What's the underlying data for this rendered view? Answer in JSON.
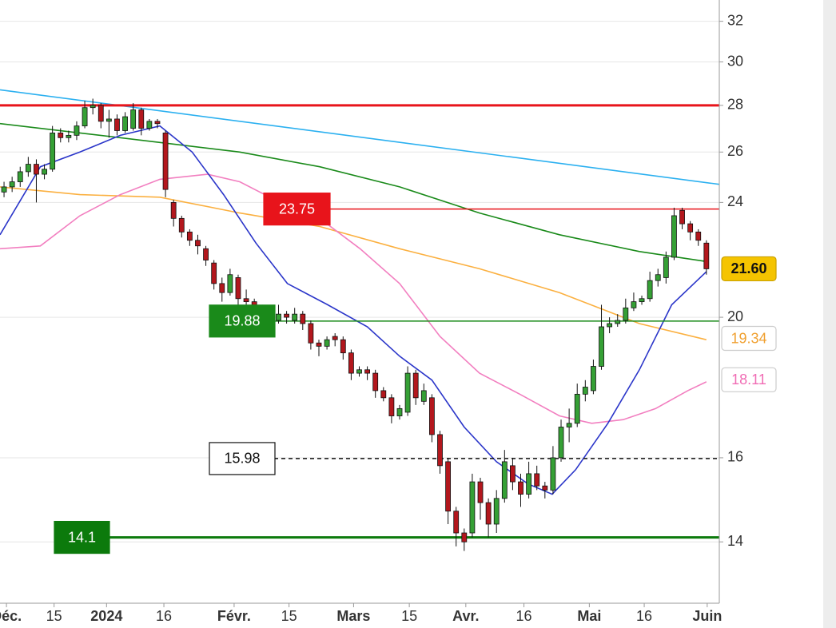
{
  "chart_data": {
    "type": "candlestick",
    "log_scale": true,
    "ylim": [
      12.7,
      33.1
    ],
    "yticks": [
      14,
      16,
      20,
      24,
      26,
      28,
      30,
      32
    ],
    "grid": true,
    "xlim": [
      -0.5,
      88.6
    ],
    "xticks": [
      {
        "value": 0.3,
        "label": "Déc."
      },
      {
        "value": 6.2,
        "label": "15"
      },
      {
        "value": 12.7,
        "label": "2024"
      },
      {
        "value": 19.8,
        "label": "16"
      },
      {
        "value": 28.5,
        "label": "Févr."
      },
      {
        "value": 35.3,
        "label": "15"
      },
      {
        "value": 43.3,
        "label": "Mars"
      },
      {
        "value": 50.2,
        "label": "15"
      },
      {
        "value": 57.2,
        "label": "Avr."
      },
      {
        "value": 64.4,
        "label": "16"
      },
      {
        "value": 72.5,
        "label": "Mai"
      },
      {
        "value": 79.3,
        "label": "16"
      },
      {
        "value": 87.1,
        "label": "Juin"
      }
    ],
    "up_color": "#35a035",
    "down_color": "#b3171d",
    "open": [
      24.4,
      24.6,
      24.8,
      25.2,
      25.5,
      25.1,
      25.3,
      26.8,
      26.6,
      26.7,
      27.1,
      27.9,
      28.0,
      27.3,
      27.4,
      26.9,
      27.0,
      27.8,
      27.0,
      27.3,
      26.8,
      24.0,
      23.4,
      22.9,
      22.6,
      22.3,
      21.8,
      21.1,
      20.8,
      21.3,
      20.6,
      20.5,
      20.3,
      20.0,
      19.9,
      20.1,
      19.9,
      20.1,
      19.8,
      19.2,
      19.1,
      19.4,
      19.3,
      18.9,
      18.3,
      18.4,
      18.3,
      17.8,
      17.6,
      17.1,
      17.2,
      18.3,
      17.5,
      17.6,
      16.6,
      15.9,
      14.7,
      14.2,
      14.2,
      15.4,
      14.9,
      14.4,
      15.0,
      15.8,
      15.4,
      15.1,
      15.6,
      15.3,
      15.2,
      16.0,
      16.8,
      16.9,
      17.7,
      17.8,
      18.5,
      19.7,
      19.8,
      19.9,
      20.3,
      20.5,
      20.6,
      21.2,
      21.3,
      22.0,
      23.7,
      23.2,
      22.9,
      22.5
    ],
    "high": [
      24.8,
      25.0,
      25.4,
      25.8,
      25.7,
      25.5,
      27.1,
      27.0,
      26.9,
      27.3,
      28.2,
      28.3,
      28.1,
      27.8,
      27.6,
      27.7,
      28.1,
      27.9,
      27.4,
      27.4,
      26.9,
      24.1,
      23.5,
      23.0,
      22.8,
      22.4,
      21.9,
      21.3,
      21.6,
      21.4,
      20.9,
      20.6,
      20.4,
      20.2,
      20.4,
      20.2,
      20.3,
      20.2,
      19.9,
      19.3,
      19.4,
      19.5,
      19.4,
      19.0,
      18.5,
      18.5,
      18.4,
      17.9,
      17.7,
      17.4,
      18.5,
      18.4,
      18.0,
      17.7,
      16.7,
      16.0,
      14.8,
      14.3,
      15.6,
      15.5,
      15.0,
      15.2,
      16.2,
      16.0,
      15.6,
      15.9,
      15.8,
      15.4,
      16.3,
      17.0,
      17.3,
      18.0,
      18.1,
      18.7,
      20.4,
      20.0,
      20.1,
      20.6,
      20.8,
      20.7,
      21.5,
      21.6,
      22.2,
      23.8,
      23.8,
      23.3,
      23.0,
      22.6
    ],
    "low": [
      24.2,
      24.4,
      24.6,
      25.0,
      24.0,
      24.9,
      25.2,
      26.4,
      26.4,
      26.5,
      27.0,
      27.6,
      27.0,
      26.6,
      26.7,
      26.8,
      26.9,
      26.7,
      26.9,
      27.0,
      24.2,
      23.1,
      22.7,
      22.4,
      22.1,
      21.7,
      20.9,
      20.5,
      20.7,
      20.3,
      20.2,
      20.0,
      19.8,
      19.7,
      19.8,
      19.8,
      19.8,
      19.6,
      19.0,
      18.8,
      19.0,
      19.1,
      18.7,
      18.1,
      18.2,
      18.1,
      17.6,
      17.5,
      16.9,
      17.0,
      17.1,
      17.4,
      17.4,
      16.4,
      15.6,
      14.4,
      13.9,
      13.8,
      14.1,
      14.5,
      14.1,
      14.2,
      14.9,
      15.2,
      14.8,
      15.0,
      15.2,
      15.0,
      15.1,
      15.9,
      16.4,
      16.8,
      17.5,
      17.7,
      18.4,
      19.5,
      19.7,
      19.8,
      20.2,
      20.4,
      20.5,
      21.0,
      21.1,
      21.9,
      23.0,
      22.6,
      22.4,
      21.4
    ],
    "close": [
      24.6,
      24.8,
      25.2,
      25.5,
      25.1,
      25.3,
      26.8,
      26.6,
      26.7,
      27.1,
      27.9,
      28.0,
      27.3,
      27.4,
      26.9,
      27.5,
      27.8,
      27.0,
      27.3,
      27.2,
      24.5,
      23.4,
      22.9,
      22.6,
      22.4,
      21.9,
      21.1,
      20.8,
      21.4,
      20.6,
      20.5,
      20.3,
      20.0,
      19.9,
      20.1,
      20.0,
      20.1,
      19.8,
      19.2,
      19.1,
      19.3,
      19.3,
      18.9,
      18.3,
      18.4,
      18.3,
      17.8,
      17.6,
      17.1,
      17.3,
      18.3,
      17.6,
      17.8,
      16.6,
      15.8,
      14.7,
      14.2,
      14.0,
      15.4,
      14.9,
      14.4,
      15.0,
      15.9,
      15.4,
      15.1,
      15.6,
      15.3,
      15.2,
      16.0,
      16.8,
      16.9,
      17.7,
      17.9,
      18.5,
      19.7,
      19.8,
      19.9,
      20.3,
      20.5,
      20.6,
      21.2,
      21.4,
      22.0,
      23.5,
      23.2,
      22.9,
      22.6,
      21.6
    ],
    "lines": [
      {
        "color": "#2bb0f0",
        "x": [
          -0.5,
          88.6
        ],
        "values": [
          28.7,
          24.7
        ]
      },
      {
        "color": "#1a8a1a",
        "x": [
          -0.5,
          9.4,
          19.3,
          29.2,
          39.1,
          49,
          58.9,
          68.8,
          78.7,
          87
        ],
        "values": [
          27.2,
          26.8,
          26.4,
          26.0,
          25.4,
          24.6,
          23.6,
          22.8,
          22.2,
          21.85
        ]
      },
      {
        "color": "#fbb040",
        "x": [
          -0.5,
          9.4,
          19.3,
          29.2,
          39.1,
          49,
          58.9,
          68.8,
          78.7,
          87
        ],
        "values": [
          24.6,
          24.3,
          24.2,
          23.6,
          23.1,
          22.3,
          21.6,
          20.8,
          19.8,
          19.3
        ]
      },
      {
        "color": "#f27fc0",
        "x": [
          -0.5,
          4.5,
          9.4,
          14.4,
          19.3,
          25.2,
          29.2,
          34.2,
          39.1,
          44.1,
          49,
          54,
          58.9,
          63.9,
          68.8,
          72.8,
          76.7,
          80.7,
          84.7,
          87
        ],
        "values": [
          22.3,
          22.4,
          23.5,
          24.3,
          24.9,
          25.1,
          24.8,
          24.0,
          23.4,
          22.3,
          21.1,
          19.4,
          18.3,
          17.7,
          17.1,
          16.9,
          17.0,
          17.3,
          17.8,
          18.05
        ]
      },
      {
        "color": "#2a35c9",
        "x": [
          -0.5,
          4.5,
          9.4,
          14.4,
          19.3,
          23.3,
          27.2,
          31.2,
          35.1,
          40.1,
          45,
          49,
          53,
          57,
          61,
          64.9,
          67.9,
          70.8,
          74.8,
          78.7,
          82.7,
          87
        ],
        "values": [
          22.8,
          25.4,
          26.0,
          26.7,
          27.1,
          26.0,
          24.3,
          22.5,
          21.1,
          20.4,
          19.7,
          18.8,
          18.1,
          16.8,
          15.9,
          15.35,
          15.1,
          15.7,
          16.9,
          18.4,
          20.4,
          21.5
        ]
      }
    ],
    "levels": [
      {
        "value": 28,
        "color": "#e8141b",
        "width": 3,
        "tag": false
      },
      {
        "value": 23.75,
        "color": "#e8141b",
        "width": 1.5,
        "tag": true
      },
      {
        "value": 19.88,
        "color": "#1a8a1a",
        "width": 1.5,
        "tag": true
      },
      {
        "value": 15.98,
        "color": "#111111",
        "width": 1.5,
        "tag": true,
        "dash": true
      },
      {
        "value": 14.1,
        "color": "#0c7a0c",
        "width": 3,
        "tag": true
      }
    ],
    "price_tags": [
      {
        "value": 19.34,
        "color": "#f0a030"
      },
      {
        "value": 18.11,
        "color": "#f06cb4"
      },
      {
        "value": 21.6,
        "label": "21.60",
        "color": "#f5c400"
      }
    ]
  }
}
